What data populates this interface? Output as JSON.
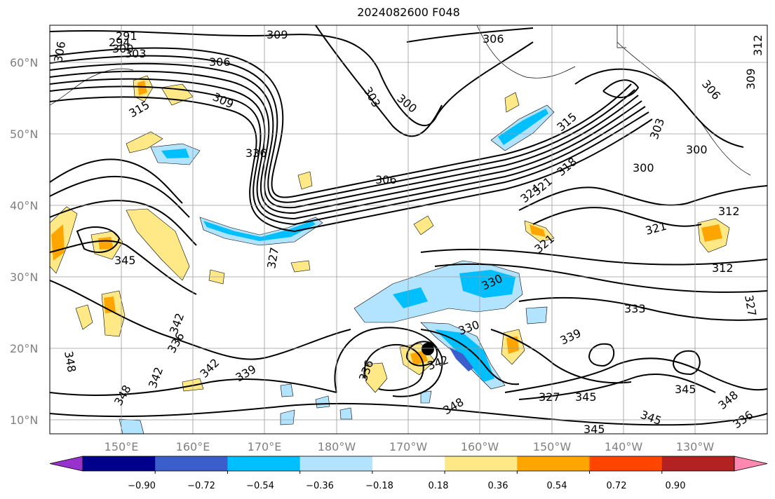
{
  "title": "2024082600 F048",
  "map": {
    "lat_labels": [
      "10°N",
      "20°N",
      "30°N",
      "40°N",
      "50°N",
      "60°N"
    ],
    "lon_labels": [
      "150°E",
      "160°E",
      "170°E",
      "180°W",
      "170°W",
      "160°W",
      "150°W",
      "140°W",
      "130°W"
    ],
    "contour_labels": [
      "291",
      "294",
      "300",
      "303",
      "309",
      "306",
      "306",
      "306",
      "312",
      "309",
      "315",
      "309",
      "303",
      "300",
      "306",
      "336",
      "315",
      "303",
      "306",
      "300",
      "300",
      "324",
      "321",
      "318",
      "312",
      "321",
      "327",
      "321",
      "312",
      "330",
      "345",
      "333",
      "327",
      "330",
      "339",
      "336",
      "348",
      "342",
      "339",
      "342",
      "336",
      "348",
      "345",
      "327",
      "345",
      "348",
      "345",
      "348",
      "345",
      "336",
      "342",
      "342"
    ]
  },
  "colorbar": {
    "ticks": [
      "−0.90",
      "−0.72",
      "−0.54",
      "−0.36",
      "−0.18",
      "0.18",
      "0.36",
      "0.54",
      "0.72",
      "0.90"
    ],
    "colors": [
      "#9932cc",
      "#00008b",
      "#3a5fcd",
      "#00bfff",
      "#b2e3ff",
      "#ffffff",
      "#ffe987",
      "#ffa500",
      "#ff4500",
      "#b22222",
      "#ff88b0"
    ]
  }
}
